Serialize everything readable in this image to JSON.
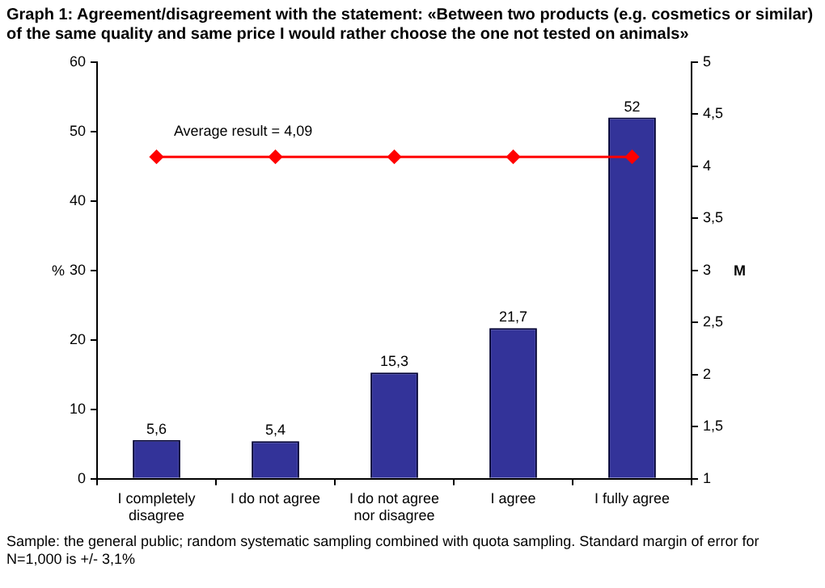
{
  "chart_data": {
    "type": "bar",
    "title": "Graph 1: Agreement/disagreement with the statement: «Between two products (e.g. cosmetics or similar) of the same quality and same price I would rather choose the one not tested on animals»",
    "categories": [
      "I completely disagree",
      "I do not agree",
      "I do not agree nor disagree",
      "I agree",
      "I fully agree"
    ],
    "series": [
      {
        "color": "#333399",
        "values": [
          5.6,
          5.4,
          15.3,
          21.7,
          52
        ],
        "value_labels": [
          "5,6",
          "5,4",
          "15,3",
          "21,7",
          "52"
        ]
      },
      {
        "type": "line",
        "axis": "y2",
        "color": "#ff0000",
        "values": [
          4.09,
          4.09,
          4.09,
          4.09,
          4.09
        ],
        "marker": "diamond"
      }
    ],
    "ylabel": "%",
    "y2label": "M",
    "ylim": [
      0,
      60
    ],
    "yticks": [
      0,
      10,
      20,
      30,
      40,
      50,
      60
    ],
    "y2lim": [
      1,
      5
    ],
    "y2ticks": [
      1,
      {
        "value": 1.5,
        "label": "1,5"
      },
      2,
      {
        "value": 2.5,
        "label": "2,5"
      },
      3,
      {
        "value": 3.5,
        "label": "3,5"
      },
      4,
      {
        "value": 4.5,
        "label": "4,5"
      },
      5
    ],
    "grid": false,
    "legend": false,
    "annotations": [
      "Average result = 4,09",
      "Sample: the general public; random systematic sampling combined with quota sampling. Standard margin of error for N=1,000 is +/- 3,1%"
    ]
  }
}
